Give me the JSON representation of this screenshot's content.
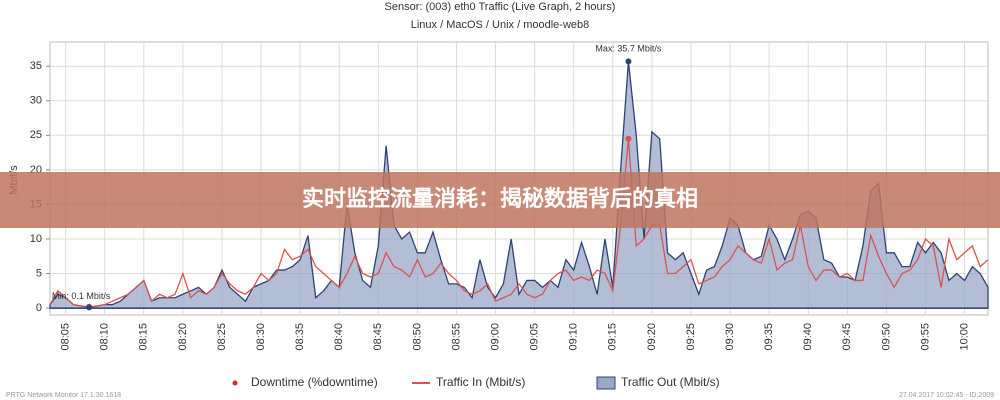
{
  "chart_data": {
    "type": "area-line",
    "title": "Sensor: (003) eth0 Traffic (Live Graph, 2 hours)",
    "subtitle": "Linux / MacOS / Unix / moodle-web8",
    "y_label": "Mbit/s",
    "banner": "实时监控流量消耗：揭秘数据背后的真相",
    "annotations": [
      "Max: 35.7 Mbit/s",
      "Min: 0.1 Mbit/s"
    ],
    "footer_left": "PRTG Network Monitor 17.1.30.1618",
    "footer_right": "27.04.2017 10:02:45 - ID:2009",
    "ylim": [
      -1,
      38.5
    ],
    "yticks": [
      0,
      5,
      10,
      15,
      20,
      25,
      30,
      35
    ],
    "grid": true,
    "categories": [
      null,
      null,
      "08:05",
      null,
      null,
      null,
      null,
      "08:10",
      null,
      null,
      null,
      null,
      "08:15",
      null,
      null,
      null,
      null,
      "08:20",
      null,
      null,
      null,
      null,
      "08:25",
      null,
      null,
      null,
      null,
      "08:30",
      null,
      null,
      null,
      null,
      "08:35",
      null,
      null,
      null,
      null,
      "08:40",
      null,
      null,
      null,
      null,
      "08:45",
      null,
      null,
      null,
      null,
      "08:50",
      null,
      null,
      null,
      null,
      "08:55",
      null,
      null,
      null,
      null,
      "09:00",
      null,
      null,
      null,
      null,
      "09:05",
      null,
      null,
      null,
      null,
      "09:10",
      null,
      null,
      null,
      null,
      "09:15",
      null,
      null,
      null,
      null,
      "09:20",
      null,
      null,
      null,
      null,
      "09:25",
      null,
      null,
      null,
      null,
      "09:30",
      null,
      null,
      null,
      null,
      "09:35",
      null,
      null,
      null,
      null,
      "09:40",
      null,
      null,
      null,
      null,
      "09:45",
      null,
      null,
      null,
      null,
      "09:50",
      null,
      null,
      null,
      null,
      "09:55",
      null,
      null,
      null,
      null,
      "10:00",
      null,
      null,
      null
    ],
    "series": [
      {
        "name": "Downtime (%downtime)",
        "kind": "dots",
        "color": "#d62728",
        "values": [
          null,
          null,
          null,
          null,
          null,
          null,
          null,
          null,
          null,
          null,
          null,
          null,
          null,
          null,
          null,
          null,
          null,
          null,
          null,
          null,
          null,
          null,
          null,
          null,
          null,
          null,
          null,
          null,
          null,
          null,
          null,
          null,
          null,
          null,
          null,
          null,
          null,
          null,
          null,
          null,
          null,
          null,
          null,
          null,
          null,
          null,
          null,
          null,
          null,
          null,
          null,
          null,
          null,
          null,
          null,
          null,
          null,
          null,
          null,
          null,
          null,
          null,
          null,
          null,
          null,
          null,
          null,
          null,
          null,
          null,
          null,
          null,
          null,
          null,
          null,
          null,
          null,
          null,
          null,
          null,
          null,
          null,
          null,
          null,
          null,
          null,
          null,
          null,
          null,
          null,
          null,
          null,
          null,
          null,
          null,
          null,
          null,
          null,
          null,
          null,
          null,
          null,
          null,
          null,
          null,
          null,
          null,
          null,
          null,
          null,
          null,
          null,
          null,
          null,
          null,
          null,
          null,
          null,
          null,
          null,
          null
        ]
      },
      {
        "name": "Traffic In (Mbit/s)",
        "kind": "line",
        "color": "#d9534f",
        "values": [
          0.5,
          2.5,
          1.5,
          0.5,
          0.3,
          0.2,
          0.3,
          0.5,
          1,
          1.5,
          2,
          3,
          4,
          1,
          2,
          1.5,
          2,
          5,
          1.5,
          2.5,
          2,
          3,
          5,
          3.5,
          2.5,
          2,
          3,
          5,
          4,
          5,
          8.5,
          7,
          7.5,
          8.5,
          6,
          5,
          4,
          3,
          5,
          7.5,
          5,
          4.5,
          5,
          8,
          6,
          5.5,
          4.5,
          7,
          4.5,
          5,
          6.5,
          5,
          4,
          2.5,
          2,
          2.5,
          3.5,
          1,
          1.5,
          2,
          3.5,
          2,
          1.5,
          2,
          4,
          5,
          5.5,
          4,
          4.5,
          4,
          5.5,
          5,
          2.5,
          12,
          24.5,
          9,
          10,
          12,
          12,
          5,
          5,
          6,
          7,
          3.5,
          4,
          4.5,
          6,
          7,
          9,
          8,
          7,
          6.5,
          10,
          5.5,
          6.5,
          7,
          12,
          6,
          4,
          5.5,
          5.5,
          4.5,
          5,
          4,
          4,
          10.5,
          7.5,
          5,
          3,
          5,
          5.5,
          7,
          10,
          9,
          3,
          10,
          7,
          8,
          9,
          6,
          7
        ]
      },
      {
        "name": "Traffic Out (Mbit/s)",
        "kind": "area",
        "color": "#9aa8c8",
        "stroke": "#2e4374",
        "values": [
          0.5,
          2,
          1.5,
          0.5,
          0.3,
          0.1,
          0.3,
          0.5,
          0.5,
          1,
          2,
          3,
          4,
          1,
          1.5,
          1.5,
          1.5,
          2,
          2.5,
          3,
          2,
          3,
          5.5,
          3,
          2,
          1,
          3,
          3.5,
          4,
          5.5,
          5.5,
          6,
          7,
          10.5,
          1.5,
          2.5,
          4,
          3,
          15,
          8,
          4,
          3,
          9,
          23.5,
          12,
          10,
          11,
          8,
          8,
          11,
          7,
          3.5,
          3.5,
          3,
          1.5,
          7,
          3,
          1.5,
          3.5,
          10,
          2,
          4,
          4,
          3,
          4,
          3,
          7,
          5.5,
          9.5,
          6,
          2,
          10,
          3,
          20,
          35.7,
          25,
          10,
          25.5,
          24.5,
          8,
          7,
          8,
          5,
          2,
          5.5,
          6,
          9,
          13,
          12,
          8,
          7,
          7.5,
          12,
          10,
          7,
          10,
          13.5,
          14,
          13,
          7,
          6.5,
          4.5,
          4.5,
          4,
          9,
          17,
          18,
          8,
          8,
          6,
          6,
          9.5,
          8,
          9.5,
          8,
          4,
          5,
          4,
          6,
          5,
          3
        ]
      }
    ]
  }
}
